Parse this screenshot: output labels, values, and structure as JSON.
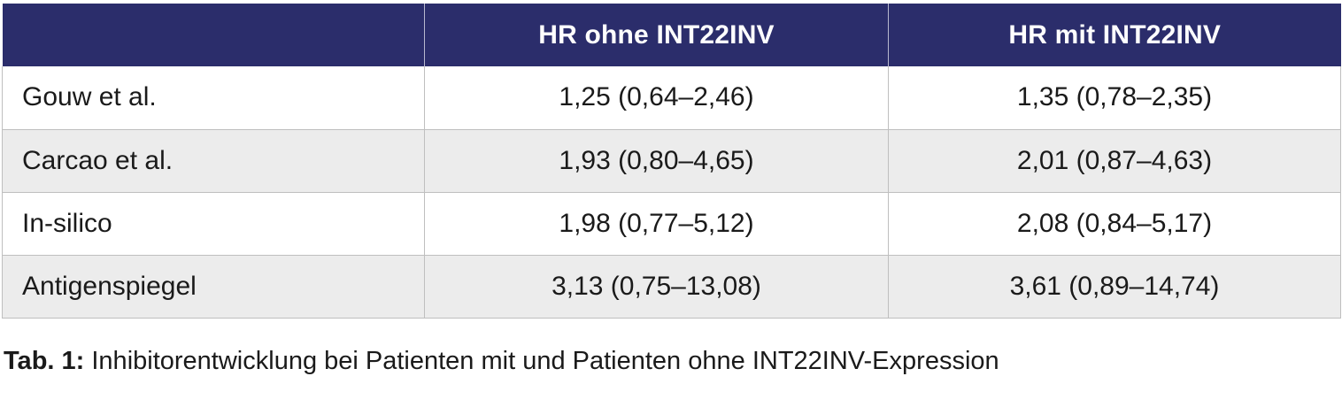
{
  "table": {
    "headers": [
      "",
      "HR ohne INT22INV",
      "HR mit INT22INV"
    ],
    "rows": [
      {
        "study": "Gouw et al.",
        "hr_without": "1,25 (0,64–2,46)",
        "hr_with": "1,35 (0,78–2,35)"
      },
      {
        "study": "Carcao et al.",
        "hr_without": "1,93 (0,80–4,65)",
        "hr_with": "2,01 (0,87–4,63)"
      },
      {
        "study": "In-silico",
        "hr_without": "1,98 (0,77–5,12)",
        "hr_with": "2,08 (0,84–5,17)"
      },
      {
        "study": "Antigenspiegel",
        "hr_without": "3,13 (0,75–13,08)",
        "hr_with": "3,61 (0,89–14,74)"
      }
    ],
    "header_color": "#2b2d6b",
    "stripe_color": "#ececec"
  },
  "caption": {
    "label": "Tab. 1:",
    "text": "Inhibitorentwicklung bei Patienten mit und Patienten ohne INT22INV-Expression"
  }
}
